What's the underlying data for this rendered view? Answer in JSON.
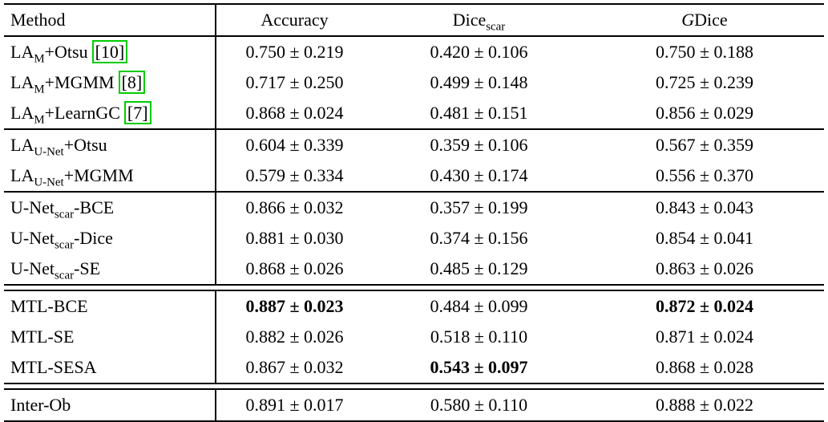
{
  "colors": {
    "citation_border": "#00cc00",
    "text": "#000000",
    "rule": "#000000"
  },
  "table": {
    "header": {
      "cells": [
        {
          "segs": [
            {
              "t": "Method"
            }
          ]
        },
        {
          "segs": [
            {
              "t": "Accuracy"
            }
          ]
        },
        {
          "segs": [
            {
              "t": "Dice"
            },
            {
              "sub": "scar"
            }
          ]
        },
        {
          "segs": [
            {
              "i": "G"
            },
            {
              "t": "Dice"
            }
          ]
        }
      ]
    },
    "rows": [
      {
        "rule_above": "none",
        "method": [
          {
            "t": "LA"
          },
          {
            "sub": "M"
          },
          {
            "t": "+Otsu"
          },
          {
            "cite": "[10]"
          }
        ],
        "values": [
          "0.750 ± 0.219",
          "0.420 ± 0.106",
          "0.750 ± 0.188"
        ],
        "bold": [
          false,
          false,
          false
        ]
      },
      {
        "rule_above": "none",
        "method": [
          {
            "t": "LA"
          },
          {
            "sub": "M"
          },
          {
            "t": "+MGMM"
          },
          {
            "cite": "[8]"
          }
        ],
        "values": [
          "0.717 ± 0.250",
          "0.499 ± 0.148",
          "0.725 ± 0.239"
        ],
        "bold": [
          false,
          false,
          false
        ]
      },
      {
        "rule_above": "none",
        "method": [
          {
            "t": "LA"
          },
          {
            "sub": "M"
          },
          {
            "t": "+LearnGC"
          },
          {
            "cite": "[7]"
          }
        ],
        "values": [
          "0.868 ± 0.024",
          "0.481 ± 0.151",
          "0.856 ± 0.029"
        ],
        "bold": [
          false,
          false,
          false
        ]
      },
      {
        "rule_above": "single",
        "method": [
          {
            "t": "LA"
          },
          {
            "sub": "U-Net"
          },
          {
            "t": "+Otsu"
          }
        ],
        "values": [
          "0.604 ± 0.339",
          "0.359 ± 0.106",
          "0.567 ± 0.359"
        ],
        "bold": [
          false,
          false,
          false
        ]
      },
      {
        "rule_above": "none",
        "method": [
          {
            "t": "LA"
          },
          {
            "sub": "U-Net"
          },
          {
            "t": "+MGMM"
          }
        ],
        "values": [
          "0.579 ± 0.334",
          "0.430 ± 0.174",
          "0.556 ± 0.370"
        ],
        "bold": [
          false,
          false,
          false
        ]
      },
      {
        "rule_above": "single",
        "method": [
          {
            "t": "U-Net"
          },
          {
            "sub": "scar"
          },
          {
            "t": "-BCE"
          }
        ],
        "values": [
          "0.866 ± 0.032",
          "0.357 ± 0.199",
          "0.843 ± 0.043"
        ],
        "bold": [
          false,
          false,
          false
        ]
      },
      {
        "rule_above": "none",
        "method": [
          {
            "t": "U-Net"
          },
          {
            "sub": "scar"
          },
          {
            "t": "-Dice"
          }
        ],
        "values": [
          "0.881 ± 0.030",
          "0.374 ± 0.156",
          "0.854 ± 0.041"
        ],
        "bold": [
          false,
          false,
          false
        ]
      },
      {
        "rule_above": "none",
        "method": [
          {
            "t": "U-Net"
          },
          {
            "sub": "scar"
          },
          {
            "t": "-SE"
          }
        ],
        "values": [
          "0.868 ± 0.026",
          "0.485 ± 0.129",
          "0.863 ± 0.026"
        ],
        "bold": [
          false,
          false,
          false
        ]
      },
      {
        "rule_above": "double",
        "method": [
          {
            "t": "MTL-BCE"
          }
        ],
        "values": [
          "0.887 ± 0.023",
          "0.484 ± 0.099",
          "0.872 ± 0.024"
        ],
        "bold": [
          true,
          false,
          true
        ]
      },
      {
        "rule_above": "none",
        "method": [
          {
            "t": "MTL-SE"
          }
        ],
        "values": [
          "0.882 ± 0.026",
          "0.518 ± 0.110",
          "0.871 ± 0.024"
        ],
        "bold": [
          false,
          false,
          false
        ]
      },
      {
        "rule_above": "none",
        "method": [
          {
            "t": "MTL-SESA"
          }
        ],
        "values": [
          "0.867 ± 0.032",
          "0.543 ± 0.097",
          "0.868 ± 0.028"
        ],
        "bold": [
          false,
          true,
          false
        ]
      },
      {
        "rule_above": "double",
        "method": [
          {
            "t": "Inter-Ob"
          }
        ],
        "values": [
          "0.891 ± 0.017",
          "0.580 ± 0.110",
          "0.888 ± 0.022"
        ],
        "bold": [
          false,
          false,
          false
        ]
      }
    ]
  }
}
